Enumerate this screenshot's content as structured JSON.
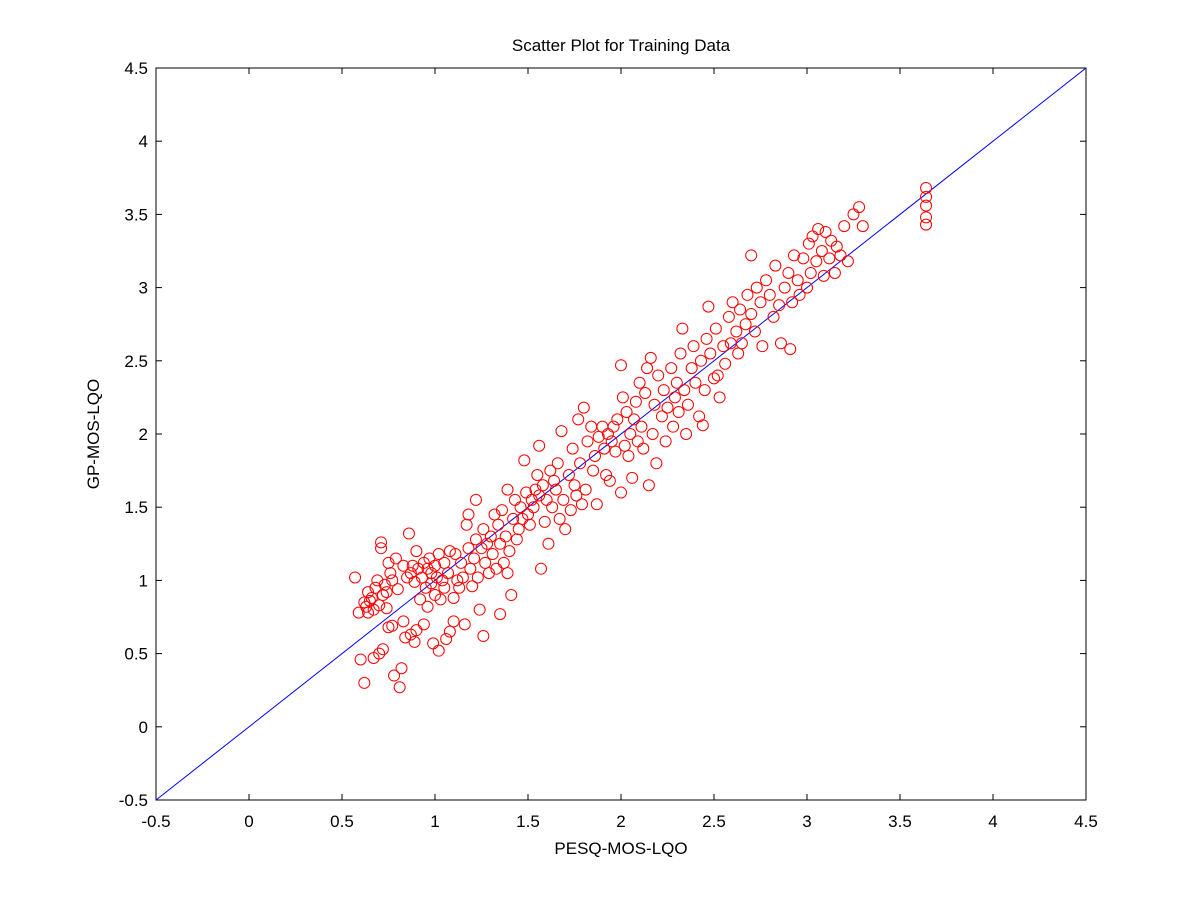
{
  "chart_data": {
    "type": "scatter",
    "title": "Scatter Plot for Training Data",
    "xlabel": "PESQ-MOS-LQO",
    "ylabel": "GP-MOS-LQO",
    "xlim": [
      -0.5,
      4.5
    ],
    "ylim": [
      -0.5,
      4.5
    ],
    "xticks": [
      -0.5,
      0,
      0.5,
      1,
      1.5,
      2,
      2.5,
      3,
      3.5,
      4,
      4.5
    ],
    "yticks": [
      -0.5,
      0,
      0.5,
      1,
      1.5,
      2,
      2.5,
      3,
      3.5,
      4,
      4.5
    ],
    "grid": false,
    "marker_color": "#ff0000",
    "reference_line": {
      "from": [
        -0.5,
        -0.5
      ],
      "to": [
        4.5,
        4.5
      ],
      "color": "#0000ff"
    },
    "series": [
      {
        "marker": "circle",
        "points": [
          [
            0.57,
            1.02
          ],
          [
            0.59,
            0.78
          ],
          [
            0.6,
            0.46
          ],
          [
            0.62,
            0.3
          ],
          [
            0.62,
            0.85
          ],
          [
            0.63,
            0.82
          ],
          [
            0.64,
            0.78
          ],
          [
            0.64,
            0.92
          ],
          [
            0.65,
            0.86
          ],
          [
            0.66,
            0.88
          ],
          [
            0.67,
            0.8
          ],
          [
            0.67,
            0.47
          ],
          [
            0.68,
            0.95
          ],
          [
            0.69,
            1.0
          ],
          [
            0.7,
            0.5
          ],
          [
            0.7,
            0.83
          ],
          [
            0.71,
            1.22
          ],
          [
            0.71,
            1.26
          ],
          [
            0.72,
            0.9
          ],
          [
            0.72,
            0.53
          ],
          [
            0.73,
            0.97
          ],
          [
            0.74,
            0.92
          ],
          [
            0.74,
            0.81
          ],
          [
            0.75,
            0.68
          ],
          [
            0.75,
            1.12
          ],
          [
            0.76,
            1.05
          ],
          [
            0.77,
            1.0
          ],
          [
            0.77,
            0.69
          ],
          [
            0.78,
            0.35
          ],
          [
            0.79,
            1.15
          ],
          [
            0.8,
            0.94
          ],
          [
            0.81,
            0.27
          ],
          [
            0.82,
            0.4
          ],
          [
            0.83,
            0.72
          ],
          [
            0.83,
            1.1
          ],
          [
            0.84,
            0.61
          ],
          [
            0.85,
            1.02
          ],
          [
            0.86,
            1.32
          ],
          [
            0.87,
            1.05
          ],
          [
            0.87,
            0.63
          ],
          [
            0.88,
            1.1
          ],
          [
            0.89,
            0.99
          ],
          [
            0.89,
            0.58
          ],
          [
            0.9,
            1.2
          ],
          [
            0.9,
            0.66
          ],
          [
            0.91,
            1.08
          ],
          [
            0.92,
            0.87
          ],
          [
            0.93,
            1.02
          ],
          [
            0.94,
            0.7
          ],
          [
            0.94,
            1.12
          ],
          [
            0.95,
            0.95
          ],
          [
            0.96,
            1.08
          ],
          [
            0.96,
            0.82
          ],
          [
            0.97,
            1.15
          ],
          [
            0.98,
            0.98
          ],
          [
            0.98,
            1.05
          ],
          [
            0.99,
            0.57
          ],
          [
            1.0,
            1.1
          ],
          [
            1.0,
            0.9
          ],
          [
            1.01,
            1.02
          ],
          [
            1.02,
            1.18
          ],
          [
            1.02,
            0.52
          ],
          [
            1.03,
            0.87
          ],
          [
            1.04,
            1.0
          ],
          [
            1.05,
            1.12
          ],
          [
            1.05,
            0.95
          ],
          [
            1.06,
            0.6
          ],
          [
            1.07,
            1.05
          ],
          [
            1.08,
            0.65
          ],
          [
            1.08,
            1.2
          ],
          [
            1.1,
            0.88
          ],
          [
            1.1,
            0.72
          ],
          [
            1.11,
            1.18
          ],
          [
            1.12,
            1.0
          ],
          [
            1.13,
            0.95
          ],
          [
            1.14,
            1.12
          ],
          [
            1.15,
            1.02
          ],
          [
            1.16,
            0.7
          ],
          [
            1.17,
            1.38
          ],
          [
            1.18,
            1.45
          ],
          [
            1.18,
            1.22
          ],
          [
            1.19,
            1.08
          ],
          [
            1.2,
            0.96
          ],
          [
            1.21,
            1.15
          ],
          [
            1.22,
            1.55
          ],
          [
            1.22,
            1.28
          ],
          [
            1.23,
            1.02
          ],
          [
            1.24,
            0.8
          ],
          [
            1.25,
            1.22
          ],
          [
            1.26,
            1.35
          ],
          [
            1.26,
            0.62
          ],
          [
            1.27,
            1.12
          ],
          [
            1.28,
            1.25
          ],
          [
            1.29,
            1.05
          ],
          [
            1.3,
            1.3
          ],
          [
            1.31,
            1.18
          ],
          [
            1.32,
            1.45
          ],
          [
            1.33,
            1.08
          ],
          [
            1.34,
            1.38
          ],
          [
            1.35,
            0.77
          ],
          [
            1.35,
            1.25
          ],
          [
            1.36,
            1.48
          ],
          [
            1.37,
            1.12
          ],
          [
            1.38,
            1.3
          ],
          [
            1.39,
            1.05
          ],
          [
            1.39,
            1.62
          ],
          [
            1.4,
            1.2
          ],
          [
            1.41,
            0.9
          ],
          [
            1.42,
            1.42
          ],
          [
            1.43,
            1.55
          ],
          [
            1.44,
            1.28
          ],
          [
            1.45,
            1.35
          ],
          [
            1.46,
            1.5
          ],
          [
            1.47,
            1.42
          ],
          [
            1.48,
            1.82
          ],
          [
            1.49,
            1.6
          ],
          [
            1.5,
            1.45
          ],
          [
            1.51,
            1.38
          ],
          [
            1.52,
            1.55
          ],
          [
            1.53,
            1.5
          ],
          [
            1.54,
            1.62
          ],
          [
            1.55,
            1.72
          ],
          [
            1.56,
            1.58
          ],
          [
            1.56,
            1.92
          ],
          [
            1.57,
            1.08
          ],
          [
            1.58,
            1.65
          ],
          [
            1.59,
            1.4
          ],
          [
            1.6,
            1.55
          ],
          [
            1.61,
            1.25
          ],
          [
            1.62,
            1.75
          ],
          [
            1.63,
            1.5
          ],
          [
            1.64,
            1.68
          ],
          [
            1.65,
            1.62
          ],
          [
            1.66,
            1.8
          ],
          [
            1.67,
            1.42
          ],
          [
            1.68,
            2.02
          ],
          [
            1.69,
            1.55
          ],
          [
            1.7,
            1.35
          ],
          [
            1.72,
            1.72
          ],
          [
            1.73,
            1.48
          ],
          [
            1.74,
            1.9
          ],
          [
            1.75,
            1.65
          ],
          [
            1.76,
            1.58
          ],
          [
            1.77,
            2.1
          ],
          [
            1.78,
            1.8
          ],
          [
            1.79,
            1.52
          ],
          [
            1.8,
            2.18
          ],
          [
            1.81,
            1.62
          ],
          [
            1.82,
            1.95
          ],
          [
            1.84,
            2.05
          ],
          [
            1.85,
            1.75
          ],
          [
            1.86,
            1.85
          ],
          [
            1.87,
            1.52
          ],
          [
            1.88,
            1.98
          ],
          [
            1.9,
            2.05
          ],
          [
            1.91,
            1.9
          ],
          [
            1.92,
            1.72
          ],
          [
            1.93,
            2.0
          ],
          [
            1.94,
            1.68
          ],
          [
            1.95,
            1.95
          ],
          [
            1.96,
            2.05
          ],
          [
            1.97,
            1.88
          ],
          [
            1.98,
            2.1
          ],
          [
            2.0,
            1.6
          ],
          [
            2.0,
            2.47
          ],
          [
            2.01,
            2.25
          ],
          [
            2.02,
            1.92
          ],
          [
            2.03,
            2.15
          ],
          [
            2.04,
            1.85
          ],
          [
            2.05,
            2.0
          ],
          [
            2.06,
            1.7
          ],
          [
            2.07,
            2.1
          ],
          [
            2.08,
            2.22
          ],
          [
            2.09,
            1.95
          ],
          [
            2.1,
            2.35
          ],
          [
            2.11,
            2.05
          ],
          [
            2.12,
            1.9
          ],
          [
            2.13,
            2.28
          ],
          [
            2.14,
            2.45
          ],
          [
            2.15,
            1.65
          ],
          [
            2.16,
            2.52
          ],
          [
            2.17,
            2.0
          ],
          [
            2.18,
            2.2
          ],
          [
            2.19,
            1.8
          ],
          [
            2.2,
            2.4
          ],
          [
            2.22,
            2.12
          ],
          [
            2.23,
            2.3
          ],
          [
            2.24,
            1.95
          ],
          [
            2.25,
            2.18
          ],
          [
            2.27,
            2.45
          ],
          [
            2.28,
            2.05
          ],
          [
            2.29,
            2.25
          ],
          [
            2.3,
            2.35
          ],
          [
            2.31,
            2.15
          ],
          [
            2.32,
            2.55
          ],
          [
            2.33,
            2.72
          ],
          [
            2.34,
            2.3
          ],
          [
            2.35,
            2.0
          ],
          [
            2.36,
            2.2
          ],
          [
            2.38,
            2.45
          ],
          [
            2.39,
            2.6
          ],
          [
            2.4,
            2.35
          ],
          [
            2.42,
            2.12
          ],
          [
            2.43,
            2.5
          ],
          [
            2.44,
            2.06
          ],
          [
            2.45,
            2.3
          ],
          [
            2.46,
            2.65
          ],
          [
            2.47,
            2.87
          ],
          [
            2.48,
            2.55
          ],
          [
            2.5,
            2.38
          ],
          [
            2.51,
            2.72
          ],
          [
            2.52,
            2.4
          ],
          [
            2.53,
            2.25
          ],
          [
            2.55,
            2.6
          ],
          [
            2.56,
            2.48
          ],
          [
            2.58,
            2.8
          ],
          [
            2.59,
            2.62
          ],
          [
            2.6,
            2.9
          ],
          [
            2.62,
            2.7
          ],
          [
            2.63,
            2.55
          ],
          [
            2.64,
            2.85
          ],
          [
            2.65,
            2.62
          ],
          [
            2.67,
            2.75
          ],
          [
            2.68,
            2.95
          ],
          [
            2.7,
            2.82
          ],
          [
            2.7,
            3.22
          ],
          [
            2.72,
            2.7
          ],
          [
            2.73,
            3.0
          ],
          [
            2.75,
            2.9
          ],
          [
            2.76,
            2.6
          ],
          [
            2.78,
            3.05
          ],
          [
            2.8,
            2.95
          ],
          [
            2.82,
            2.8
          ],
          [
            2.83,
            3.15
          ],
          [
            2.85,
            2.88
          ],
          [
            2.86,
            2.62
          ],
          [
            2.88,
            3.0
          ],
          [
            2.9,
            3.1
          ],
          [
            2.91,
            2.58
          ],
          [
            2.92,
            2.9
          ],
          [
            2.93,
            3.22
          ],
          [
            2.95,
            3.05
          ],
          [
            2.96,
            2.95
          ],
          [
            2.98,
            3.2
          ],
          [
            3.0,
            3.0
          ],
          [
            3.01,
            3.3
          ],
          [
            3.02,
            3.1
          ],
          [
            3.03,
            3.35
          ],
          [
            3.05,
            3.18
          ],
          [
            3.06,
            3.4
          ],
          [
            3.08,
            3.25
          ],
          [
            3.09,
            3.08
          ],
          [
            3.1,
            3.38
          ],
          [
            3.12,
            3.2
          ],
          [
            3.13,
            3.32
          ],
          [
            3.15,
            3.1
          ],
          [
            3.16,
            3.28
          ],
          [
            3.18,
            3.22
          ],
          [
            3.2,
            3.42
          ],
          [
            3.22,
            3.18
          ],
          [
            3.25,
            3.5
          ],
          [
            3.28,
            3.55
          ],
          [
            3.3,
            3.42
          ],
          [
            3.64,
            3.43
          ],
          [
            3.64,
            3.48
          ],
          [
            3.64,
            3.56
          ],
          [
            3.64,
            3.62
          ],
          [
            3.64,
            3.68
          ]
        ]
      }
    ]
  }
}
